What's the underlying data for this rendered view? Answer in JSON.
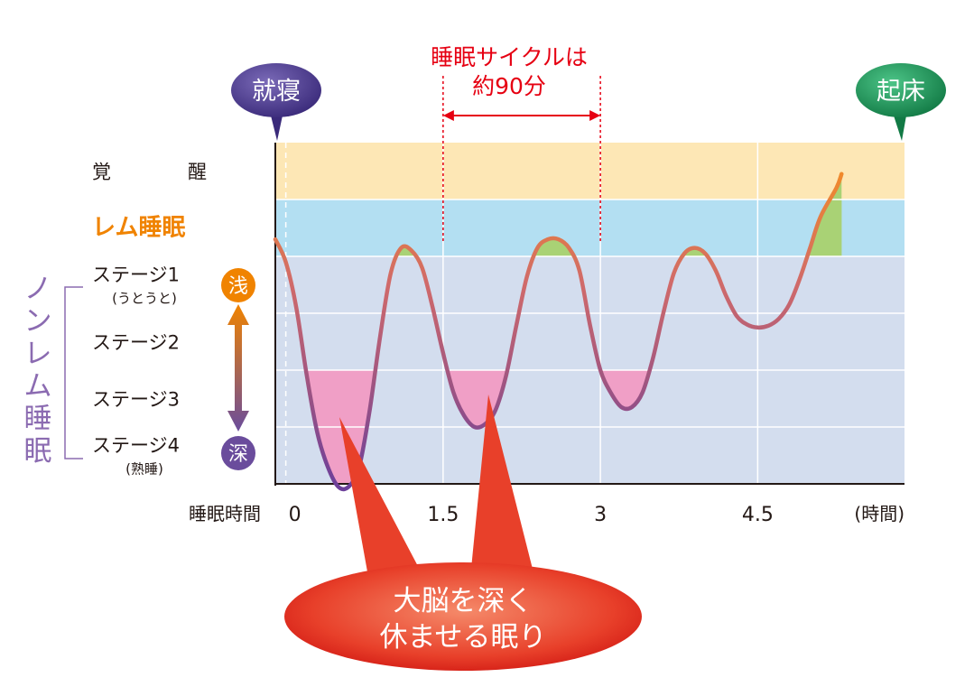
{
  "chart_data": {
    "type": "line",
    "title": "",
    "xlabel": "睡眠時間",
    "x_unit_label": "(時間)",
    "x_ticks": [
      "0",
      "1.5",
      "3",
      "4.5"
    ],
    "x_tick_values": [
      0,
      1.5,
      3,
      4.5
    ],
    "xlim": [
      -0.1,
      5.9
    ],
    "stages": [
      {
        "key": "wake",
        "label": "覚　醒",
        "sub": "",
        "level": 0
      },
      {
        "key": "rem",
        "label": "レム睡眠",
        "sub": "",
        "level": 1
      },
      {
        "key": "s1",
        "label": "ステージ1",
        "sub": "(うとうと)",
        "level": 2
      },
      {
        "key": "s2",
        "label": "ステージ2",
        "sub": "",
        "level": 3
      },
      {
        "key": "s3",
        "label": "ステージ3",
        "sub": "",
        "level": 4
      },
      {
        "key": "s4",
        "label": "ステージ4",
        "sub": "(熟睡)",
        "level": 5
      }
    ],
    "nonrem_label": "ノンレム睡眠",
    "depth_shallow": "浅",
    "depth_deep": "深",
    "series": [
      {
        "points": [
          [
            -0.1,
            1.2
          ],
          [
            0,
            1.6
          ],
          [
            0.1,
            2.4
          ],
          [
            0.2,
            3.6
          ],
          [
            0.3,
            4.6
          ],
          [
            0.4,
            5.2
          ],
          [
            0.5,
            5.55
          ],
          [
            0.6,
            5.55
          ],
          [
            0.7,
            5.2
          ],
          [
            0.8,
            4.2
          ],
          [
            0.9,
            2.9
          ],
          [
            1.0,
            1.8
          ],
          [
            1.1,
            1.35
          ],
          [
            1.2,
            1.4
          ],
          [
            1.3,
            1.7
          ],
          [
            1.4,
            2.4
          ],
          [
            1.5,
            3.2
          ],
          [
            1.6,
            3.9
          ],
          [
            1.7,
            4.3
          ],
          [
            1.8,
            4.5
          ],
          [
            1.9,
            4.45
          ],
          [
            2.0,
            4.2
          ],
          [
            2.1,
            3.6
          ],
          [
            2.2,
            2.7
          ],
          [
            2.3,
            1.85
          ],
          [
            2.4,
            1.35
          ],
          [
            2.5,
            1.2
          ],
          [
            2.6,
            1.2
          ],
          [
            2.7,
            1.35
          ],
          [
            2.8,
            1.75
          ],
          [
            2.9,
            2.7
          ],
          [
            3.0,
            3.5
          ],
          [
            3.1,
            3.9
          ],
          [
            3.2,
            4.15
          ],
          [
            3.3,
            4.15
          ],
          [
            3.4,
            3.9
          ],
          [
            3.5,
            3.3
          ],
          [
            3.6,
            2.5
          ],
          [
            3.7,
            1.8
          ],
          [
            3.8,
            1.45
          ],
          [
            3.9,
            1.35
          ],
          [
            4.0,
            1.45
          ],
          [
            4.1,
            1.75
          ],
          [
            4.2,
            2.2
          ],
          [
            4.3,
            2.55
          ],
          [
            4.4,
            2.7
          ],
          [
            4.5,
            2.75
          ],
          [
            4.6,
            2.72
          ],
          [
            4.7,
            2.6
          ],
          [
            4.8,
            2.35
          ],
          [
            4.9,
            1.9
          ],
          [
            5.0,
            1.35
          ],
          [
            5.1,
            0.8
          ],
          [
            5.25,
            0.3
          ],
          [
            5.3,
            0.05
          ]
        ]
      }
    ],
    "events": [
      {
        "key": "sleep",
        "label": "就寝",
        "x": -0.1,
        "color": "#4b3a8c"
      },
      {
        "key": "wake",
        "label": "起床",
        "x": 5.9,
        "color": "#1e9a5c"
      }
    ],
    "cycle_annotation": {
      "text_line1": "睡眠サイクルは",
      "text_line2": "約90分",
      "x_start": 1.5,
      "x_end": 3.0,
      "color": "#e60012"
    },
    "callout": {
      "line1": "大脳を深く",
      "line2": "休ませる眠り"
    },
    "colors": {
      "wake_band": "#fde7b5",
      "rem_band": "#b3dff2",
      "nonrem_band": "#d3ddee",
      "rem_fill": "#a9d275",
      "deep_fill": "#f09fc6",
      "rem_label": "#f08300",
      "nonrem_label": "#8b6bb1",
      "shallow_badge": "#f08300",
      "deep_badge": "#6a4c9c",
      "grid": "#ffffff"
    }
  }
}
